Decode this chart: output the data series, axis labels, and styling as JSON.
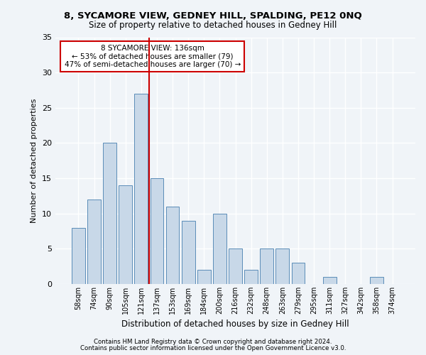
{
  "title1": "8, SYCAMORE VIEW, GEDNEY HILL, SPALDING, PE12 0NQ",
  "title2": "Size of property relative to detached houses in Gedney Hill",
  "xlabel": "Distribution of detached houses by size in Gedney Hill",
  "ylabel": "Number of detached properties",
  "categories": [
    "58sqm",
    "74sqm",
    "90sqm",
    "105sqm",
    "121sqm",
    "137sqm",
    "153sqm",
    "169sqm",
    "184sqm",
    "200sqm",
    "216sqm",
    "232sqm",
    "248sqm",
    "263sqm",
    "279sqm",
    "295sqm",
    "311sqm",
    "327sqm",
    "342sqm",
    "358sqm",
    "374sqm"
  ],
  "values": [
    8,
    12,
    20,
    14,
    27,
    15,
    11,
    9,
    2,
    10,
    5,
    2,
    5,
    5,
    3,
    0,
    1,
    0,
    0,
    1,
    0
  ],
  "bar_color": "#c8d8e8",
  "bar_edge_color": "#5b8db8",
  "vline_color": "#cc0000",
  "annotation_text": "8 SYCAMORE VIEW: 136sqm\n← 53% of detached houses are smaller (79)\n47% of semi-detached houses are larger (70) →",
  "annotation_box_color": "white",
  "annotation_box_edge_color": "#cc0000",
  "ylim": [
    0,
    35
  ],
  "yticks": [
    0,
    5,
    10,
    15,
    20,
    25,
    30,
    35
  ],
  "footer1": "Contains HM Land Registry data © Crown copyright and database right 2024.",
  "footer2": "Contains public sector information licensed under the Open Government Licence v3.0.",
  "bg_color": "#f0f4f8",
  "plot_bg_color": "#f0f4f8"
}
